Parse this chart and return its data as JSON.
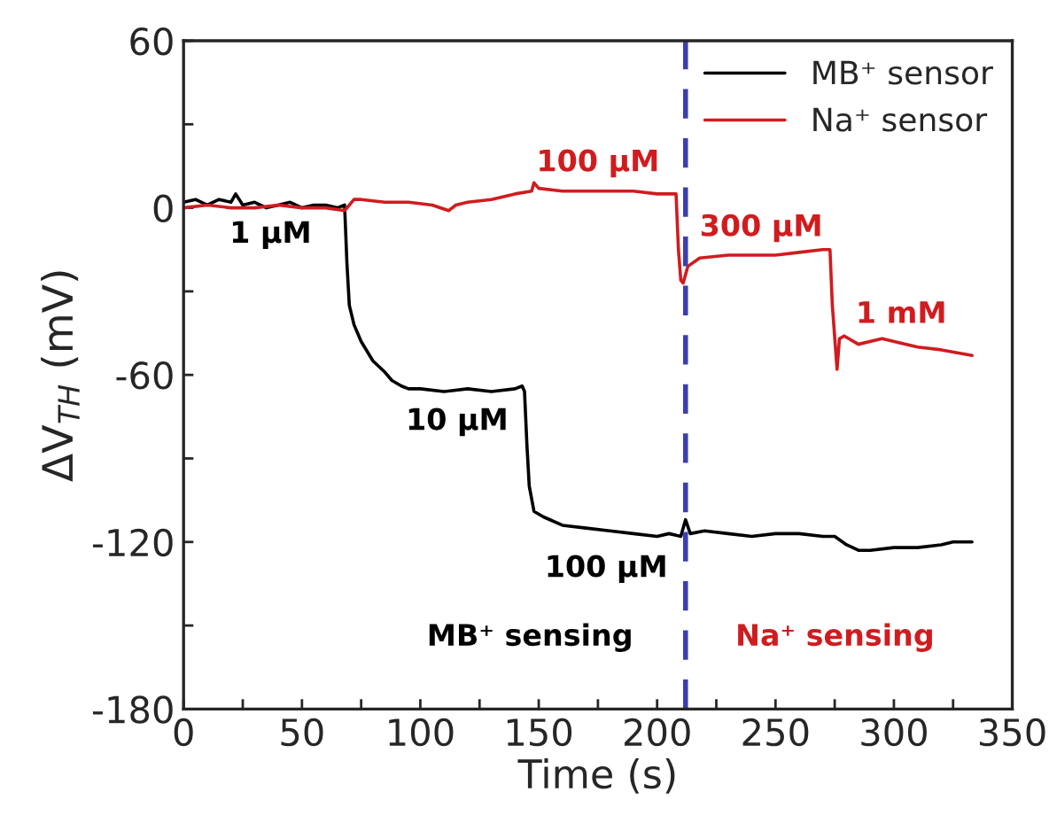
{
  "chart_data": {
    "type": "line",
    "xlabel": "Time (s)",
    "ylabel": "ΔV$_{TH}$ (mV)",
    "xlim": [
      0,
      350
    ],
    "ylim": [
      -180,
      60
    ],
    "xticks": [
      0,
      {
        "value": 25,
        "label": null
      },
      50,
      {
        "value": 75,
        "label": null
      },
      100,
      {
        "value": 125,
        "label": null
      },
      150,
      {
        "value": 175,
        "label": null
      },
      200,
      {
        "value": 225,
        "label": null
      },
      250,
      {
        "value": 275,
        "label": null
      },
      300,
      {
        "value": 325,
        "label": null
      },
      350
    ],
    "yticks": [
      -180,
      {
        "value": -150,
        "label": null
      },
      -120,
      {
        "value": -90,
        "label": null
      },
      -60,
      {
        "value": -30,
        "label": null
      },
      0,
      {
        "value": 30,
        "label": null
      },
      60
    ],
    "legend": "top right",
    "grid": false,
    "marker": "none",
    "line_style": "solid",
    "series": [
      {
        "name": "MB⁺ sensor",
        "color": "#000000",
        "x": [
          0,
          5,
          10,
          15,
          20,
          22,
          25,
          30,
          35,
          40,
          45,
          50,
          55,
          60,
          65,
          68,
          69,
          70,
          72,
          75,
          80,
          85,
          88,
          92,
          95,
          100,
          110,
          120,
          130,
          140,
          143,
          144,
          145,
          146,
          148,
          152,
          160,
          170,
          180,
          190,
          200,
          205,
          210,
          212,
          214,
          220,
          230,
          240,
          250,
          260,
          270,
          275,
          280,
          285,
          290,
          300,
          310,
          320,
          325,
          333
        ],
        "values": [
          2,
          3,
          1,
          3,
          2,
          5,
          1,
          2,
          0,
          1,
          2,
          0,
          1,
          1,
          0,
          1,
          -20,
          -35,
          -42,
          -48,
          -55,
          -59,
          -62,
          -64,
          -65,
          -65,
          -66,
          -65,
          -66,
          -65,
          -64,
          -66,
          -85,
          -100,
          -109,
          -111,
          -114,
          -115,
          -116,
          -117,
          -118,
          -117,
          -118,
          -112,
          -117,
          -116,
          -117,
          -118,
          -117,
          -117,
          -118,
          -118,
          -121,
          -123,
          -123,
          -122,
          -122,
          -121,
          -120,
          -120
        ]
      },
      {
        "name": "Na⁺ sensor",
        "color": "#d01c1f",
        "x": [
          0,
          10,
          20,
          30,
          40,
          50,
          60,
          68,
          72,
          75,
          85,
          95,
          105,
          112,
          115,
          120,
          130,
          140,
          147,
          148,
          150,
          160,
          170,
          180,
          190,
          200,
          208,
          209,
          210,
          211,
          213,
          218,
          230,
          240,
          250,
          260,
          270,
          273,
          274,
          276,
          277,
          279,
          285,
          295,
          310,
          320,
          333
        ],
        "values": [
          0,
          1,
          0,
          0,
          1,
          0,
          0,
          -1,
          3,
          3,
          2,
          2,
          1,
          -1,
          1,
          2,
          3,
          5,
          6,
          9,
          7,
          6,
          6,
          6,
          6,
          5,
          5,
          -15,
          -26,
          -27,
          -21,
          -18,
          -17,
          -17,
          -17,
          -16,
          -15,
          -15,
          -35,
          -58,
          -47,
          -46,
          -49,
          -47,
          -50,
          -51,
          -53
        ]
      }
    ],
    "ref_lines": [
      {
        "axis": "x",
        "value": 212,
        "color": "#3a3fb0",
        "line_style": "dashed"
      }
    ],
    "annotations": [
      "1 μM",
      "10 μM",
      "100 μM",
      "100 μM",
      "300 μM",
      "1 mM",
      "MB⁺ sensing",
      "Na⁺ sensing"
    ]
  }
}
